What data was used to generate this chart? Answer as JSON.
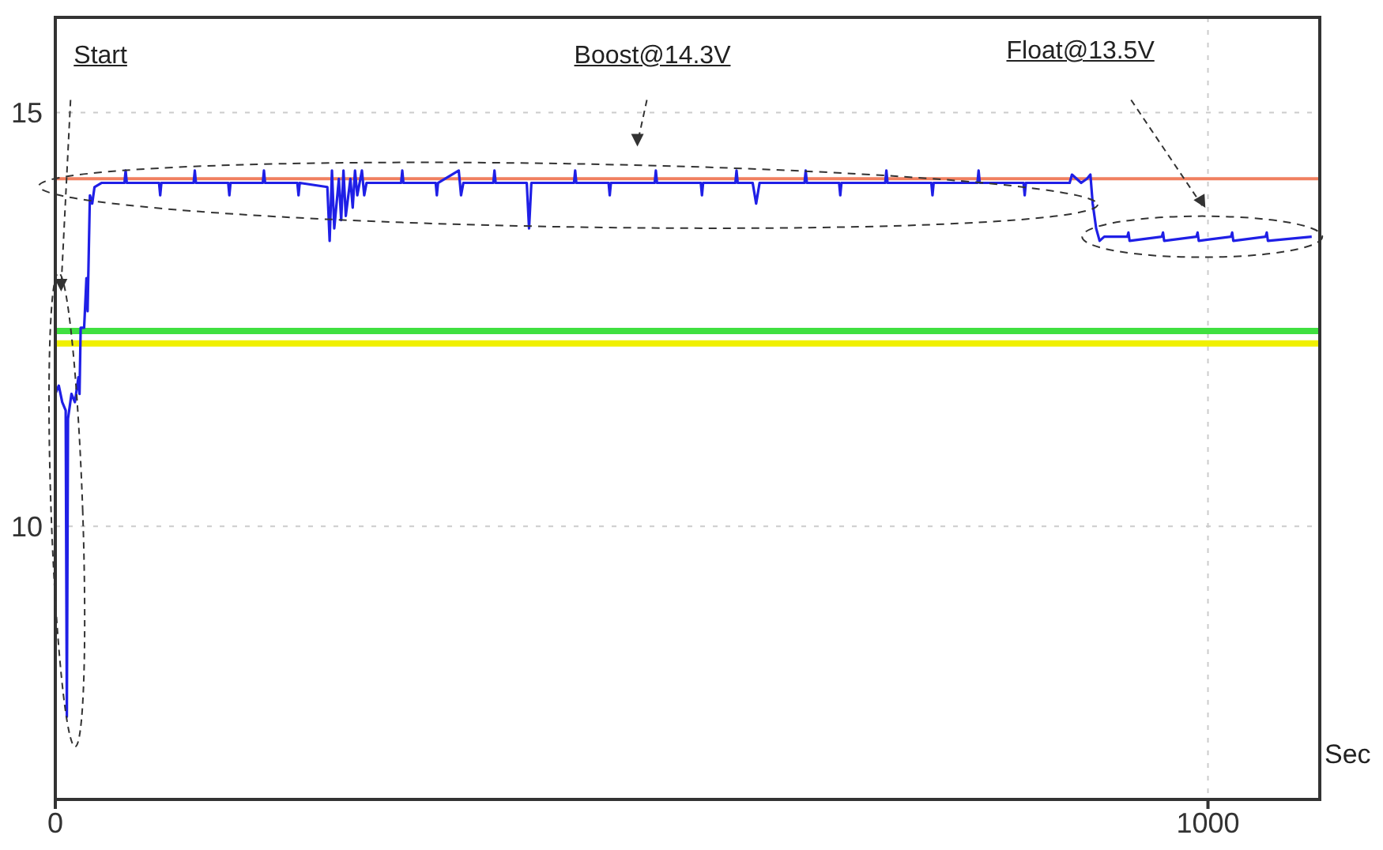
{
  "chart_data": {
    "type": "line",
    "xlabel": "Sec",
    "annotations": [
      "Start",
      "Boost@14.3V",
      "Float@13.5V"
    ],
    "xlim": [
      0,
      1097
    ],
    "ylim": [
      6.7,
      16.15
    ],
    "xticks": [
      0,
      1000
    ],
    "yticks": [
      10,
      15
    ],
    "grid": true,
    "marker": "none",
    "line_style": "solid",
    "series": [
      {
        "color": "#1f1fe6",
        "x": [
          0,
          3,
          6,
          9,
          10,
          11,
          14,
          17,
          20,
          21,
          22,
          25,
          27,
          28,
          30,
          32,
          34,
          40,
          60,
          61,
          62,
          90,
          91,
          92,
          120,
          121,
          122,
          150,
          151,
          152,
          180,
          181,
          182,
          210,
          211,
          212,
          236,
          238,
          240,
          242,
          246,
          248,
          250,
          252,
          256,
          258,
          260,
          262,
          266,
          268,
          270,
          300,
          301,
          302,
          330,
          331,
          332,
          350,
          352,
          354,
          380,
          381,
          382,
          409,
          411,
          413,
          450,
          451,
          452,
          480,
          481,
          482,
          520,
          521,
          522,
          560,
          561,
          562,
          590,
          591,
          592,
          605,
          608,
          611,
          650,
          651,
          652,
          680,
          681,
          682,
          720,
          721,
          722,
          760,
          761,
          762,
          800,
          801,
          802,
          840,
          841,
          842,
          880,
          882,
          890,
          895,
          898,
          900,
          903,
          906,
          910,
          930,
          931,
          932,
          960,
          961,
          962,
          990,
          991,
          992,
          1020,
          1021,
          1022,
          1050,
          1051,
          1052,
          1090
        ],
        "values": [
          11.6,
          11.7,
          11.5,
          11.4,
          7.7,
          11.3,
          11.6,
          11.5,
          11.8,
          11.6,
          12.4,
          12.4,
          13.0,
          12.6,
          14.0,
          13.9,
          14.1,
          14.15,
          14.15,
          14.3,
          14.15,
          14.15,
          14.0,
          14.15,
          14.15,
          14.3,
          14.15,
          14.15,
          14.0,
          14.15,
          14.15,
          14.3,
          14.15,
          14.15,
          14.0,
          14.15,
          14.1,
          13.45,
          14.3,
          13.6,
          14.2,
          13.7,
          14.3,
          13.75,
          14.2,
          13.85,
          14.3,
          14.0,
          14.3,
          14.0,
          14.15,
          14.15,
          14.3,
          14.15,
          14.15,
          14.0,
          14.15,
          14.3,
          14.0,
          14.15,
          14.15,
          14.3,
          14.15,
          14.15,
          13.6,
          14.15,
          14.15,
          14.3,
          14.15,
          14.15,
          14.0,
          14.15,
          14.15,
          14.3,
          14.15,
          14.15,
          14.0,
          14.15,
          14.15,
          14.3,
          14.15,
          14.15,
          13.9,
          14.15,
          14.15,
          14.3,
          14.15,
          14.15,
          14.0,
          14.15,
          14.15,
          14.3,
          14.15,
          14.15,
          14.0,
          14.15,
          14.15,
          14.3,
          14.15,
          14.15,
          14.0,
          14.15,
          14.15,
          14.25,
          14.15,
          14.2,
          14.25,
          13.9,
          13.6,
          13.45,
          13.5,
          13.5,
          13.55,
          13.45,
          13.5,
          13.55,
          13.45,
          13.5,
          13.55,
          13.45,
          13.5,
          13.55,
          13.45,
          13.5,
          13.55,
          13.45,
          13.5
        ]
      }
    ],
    "ref_lines": [
      {
        "axis": "y",
        "value": 14.2,
        "color": "#f08060"
      },
      {
        "axis": "y",
        "value": 12.36,
        "color": "#40e040"
      },
      {
        "axis": "y",
        "value": 12.21,
        "color": "#f0f000"
      }
    ]
  }
}
